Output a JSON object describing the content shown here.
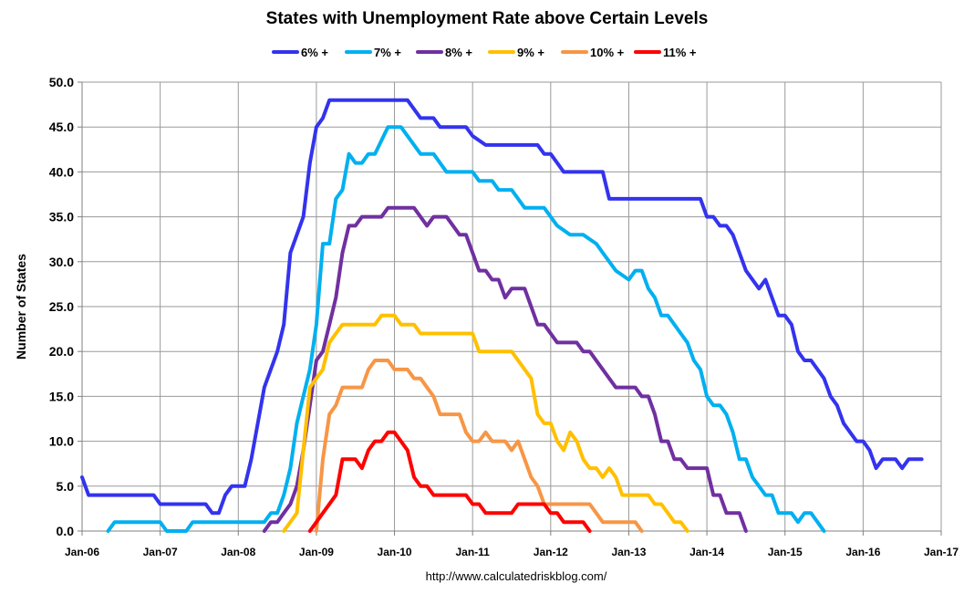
{
  "chart_data": {
    "type": "line",
    "title": "States with Unemployment Rate above Certain Levels",
    "ylabel": "Number of States",
    "xlabel": "",
    "source": "http://www.calculatedriskblog.com/",
    "ylim": [
      0,
      50
    ],
    "xlim": [
      "2006-01",
      "2017-01"
    ],
    "grid": true,
    "legend_position": "top-center",
    "y_ticks": [
      "0.0",
      "5.0",
      "10.0",
      "15.0",
      "20.0",
      "25.0",
      "30.0",
      "35.0",
      "40.0",
      "45.0",
      "50.0"
    ],
    "x_ticks": [
      "Jan-06",
      "Jan-07",
      "Jan-08",
      "Jan-09",
      "Jan-10",
      "Jan-11",
      "Jan-12",
      "Jan-13",
      "Jan-14",
      "Jan-15",
      "Jan-16",
      "Jan-17"
    ],
    "series": [
      {
        "name": "6% +",
        "color": "#3333ee",
        "points": [
          [
            "2006-01",
            6
          ],
          [
            "2006-02",
            4
          ],
          [
            "2006-12",
            4
          ],
          [
            "2007-01",
            3
          ],
          [
            "2007-08",
            3
          ],
          [
            "2007-09",
            2
          ],
          [
            "2007-10",
            2
          ],
          [
            "2007-11",
            4
          ],
          [
            "2007-12",
            5
          ],
          [
            "2008-02",
            5
          ],
          [
            "2008-03",
            8
          ],
          [
            "2008-05",
            16
          ],
          [
            "2008-07",
            20
          ],
          [
            "2008-08",
            23
          ],
          [
            "2008-09",
            31
          ],
          [
            "2008-11",
            35
          ],
          [
            "2008-12",
            41
          ],
          [
            "2009-01",
            45
          ],
          [
            "2009-02",
            46
          ],
          [
            "2009-03",
            48
          ],
          [
            "2010-03",
            48
          ],
          [
            "2010-05",
            46
          ],
          [
            "2010-07",
            46
          ],
          [
            "2010-08",
            45
          ],
          [
            "2010-12",
            45
          ],
          [
            "2011-01",
            44
          ],
          [
            "2011-03",
            43
          ],
          [
            "2011-11",
            43
          ],
          [
            "2011-12",
            42
          ],
          [
            "2012-01",
            42
          ],
          [
            "2012-03",
            40
          ],
          [
            "2012-09",
            40
          ],
          [
            "2012-10",
            37
          ],
          [
            "2013-12",
            37
          ],
          [
            "2014-01",
            35
          ],
          [
            "2014-02",
            35
          ],
          [
            "2014-03",
            34
          ],
          [
            "2014-04",
            34
          ],
          [
            "2014-05",
            33
          ],
          [
            "2014-07",
            29
          ],
          [
            "2014-09",
            27
          ],
          [
            "2014-10",
            28
          ],
          [
            "2014-12",
            24
          ],
          [
            "2015-01",
            24
          ],
          [
            "2015-02",
            23
          ],
          [
            "2015-03",
            20
          ],
          [
            "2015-04",
            19
          ],
          [
            "2015-05",
            19
          ],
          [
            "2015-07",
            17
          ],
          [
            "2015-08",
            15
          ],
          [
            "2015-09",
            14
          ],
          [
            "2015-10",
            12
          ],
          [
            "2015-12",
            10
          ],
          [
            "2016-01",
            10
          ],
          [
            "2016-02",
            9
          ],
          [
            "2016-03",
            7
          ],
          [
            "2016-04",
            8
          ],
          [
            "2016-06",
            8
          ],
          [
            "2016-07",
            7
          ],
          [
            "2016-08",
            8
          ],
          [
            "2016-10",
            8
          ]
        ]
      },
      {
        "name": "7% +",
        "color": "#00b0f0",
        "points": [
          [
            "2006-05",
            0
          ],
          [
            "2006-06",
            1
          ],
          [
            "2007-01",
            1
          ],
          [
            "2007-02",
            0
          ],
          [
            "2007-05",
            0
          ],
          [
            "2007-06",
            1
          ],
          [
            "2008-05",
            1
          ],
          [
            "2008-06",
            2
          ],
          [
            "2008-07",
            2
          ],
          [
            "2008-08",
            4
          ],
          [
            "2008-09",
            7
          ],
          [
            "2008-10",
            12
          ],
          [
            "2008-11",
            15
          ],
          [
            "2008-12",
            18
          ],
          [
            "2009-01",
            23
          ],
          [
            "2009-02",
            32
          ],
          [
            "2009-03",
            32
          ],
          [
            "2009-04",
            37
          ],
          [
            "2009-05",
            38
          ],
          [
            "2009-06",
            42
          ],
          [
            "2009-07",
            41
          ],
          [
            "2009-08",
            41
          ],
          [
            "2009-09",
            42
          ],
          [
            "2009-10",
            42
          ],
          [
            "2009-12",
            45
          ],
          [
            "2010-02",
            45
          ],
          [
            "2010-05",
            42
          ],
          [
            "2010-07",
            42
          ],
          [
            "2010-09",
            40
          ],
          [
            "2011-01",
            40
          ],
          [
            "2011-02",
            39
          ],
          [
            "2011-04",
            39
          ],
          [
            "2011-05",
            38
          ],
          [
            "2011-07",
            38
          ],
          [
            "2011-09",
            36
          ],
          [
            "2011-12",
            36
          ],
          [
            "2012-01",
            35
          ],
          [
            "2012-02",
            34
          ],
          [
            "2012-04",
            33
          ],
          [
            "2012-06",
            33
          ],
          [
            "2012-08",
            32
          ],
          [
            "2012-09",
            31
          ],
          [
            "2012-11",
            29
          ],
          [
            "2013-01",
            28
          ],
          [
            "2013-02",
            29
          ],
          [
            "2013-03",
            29
          ],
          [
            "2013-04",
            27
          ],
          [
            "2013-05",
            26
          ],
          [
            "2013-06",
            24
          ],
          [
            "2013-07",
            24
          ],
          [
            "2013-09",
            22
          ],
          [
            "2013-10",
            21
          ],
          [
            "2013-11",
            19
          ],
          [
            "2013-12",
            18
          ],
          [
            "2014-01",
            15
          ],
          [
            "2014-02",
            14
          ],
          [
            "2014-03",
            14
          ],
          [
            "2014-04",
            13
          ],
          [
            "2014-05",
            11
          ],
          [
            "2014-06",
            8
          ],
          [
            "2014-07",
            8
          ],
          [
            "2014-08",
            6
          ],
          [
            "2014-10",
            4
          ],
          [
            "2014-11",
            4
          ],
          [
            "2014-12",
            2
          ],
          [
            "2015-02",
            2
          ],
          [
            "2015-03",
            1
          ],
          [
            "2015-04",
            2
          ],
          [
            "2015-05",
            2
          ],
          [
            "2015-06",
            1
          ],
          [
            "2015-07",
            0
          ]
        ]
      },
      {
        "name": "8% +",
        "color": "#7030a0",
        "points": [
          [
            "2008-05",
            0
          ],
          [
            "2008-06",
            1
          ],
          [
            "2008-07",
            1
          ],
          [
            "2008-08",
            2
          ],
          [
            "2008-09",
            3
          ],
          [
            "2008-10",
            5
          ],
          [
            "2008-11",
            9
          ],
          [
            "2008-12",
            14
          ],
          [
            "2009-01",
            19
          ],
          [
            "2009-02",
            20
          ],
          [
            "2009-03",
            23
          ],
          [
            "2009-04",
            26
          ],
          [
            "2009-05",
            31
          ],
          [
            "2009-06",
            34
          ],
          [
            "2009-07",
            34
          ],
          [
            "2009-08",
            35
          ],
          [
            "2009-11",
            35
          ],
          [
            "2009-12",
            36
          ],
          [
            "2010-04",
            36
          ],
          [
            "2010-06",
            34
          ],
          [
            "2010-07",
            35
          ],
          [
            "2010-09",
            35
          ],
          [
            "2010-11",
            33
          ],
          [
            "2010-12",
            33
          ],
          [
            "2011-02",
            29
          ],
          [
            "2011-03",
            29
          ],
          [
            "2011-04",
            28
          ],
          [
            "2011-05",
            28
          ],
          [
            "2011-06",
            26
          ],
          [
            "2011-07",
            27
          ],
          [
            "2011-09",
            27
          ],
          [
            "2011-11",
            23
          ],
          [
            "2011-12",
            23
          ],
          [
            "2012-02",
            21
          ],
          [
            "2012-05",
            21
          ],
          [
            "2012-06",
            20
          ],
          [
            "2012-07",
            20
          ],
          [
            "2012-10",
            17
          ],
          [
            "2012-11",
            16
          ],
          [
            "2013-02",
            16
          ],
          [
            "2013-03",
            15
          ],
          [
            "2013-04",
            15
          ],
          [
            "2013-05",
            13
          ],
          [
            "2013-06",
            10
          ],
          [
            "2013-07",
            10
          ],
          [
            "2013-08",
            8
          ],
          [
            "2013-09",
            8
          ],
          [
            "2013-10",
            7
          ],
          [
            "2014-01",
            7
          ],
          [
            "2014-02",
            4
          ],
          [
            "2014-03",
            4
          ],
          [
            "2014-04",
            2
          ],
          [
            "2014-06",
            2
          ],
          [
            "2014-07",
            0
          ]
        ]
      },
      {
        "name": "9% +",
        "color": "#ffc000",
        "points": [
          [
            "2008-08",
            0
          ],
          [
            "2008-10",
            2
          ],
          [
            "2008-11",
            9
          ],
          [
            "2008-12",
            16
          ],
          [
            "2009-01",
            17
          ],
          [
            "2009-02",
            18
          ],
          [
            "2009-03",
            21
          ],
          [
            "2009-04",
            22
          ],
          [
            "2009-05",
            23
          ],
          [
            "2009-10",
            23
          ],
          [
            "2009-11",
            24
          ],
          [
            "2010-01",
            24
          ],
          [
            "2010-02",
            23
          ],
          [
            "2010-04",
            23
          ],
          [
            "2010-05",
            22
          ],
          [
            "2011-01",
            22
          ],
          [
            "2011-02",
            20
          ],
          [
            "2011-07",
            20
          ],
          [
            "2011-09",
            18
          ],
          [
            "2011-10",
            17
          ],
          [
            "2011-11",
            13
          ],
          [
            "2011-12",
            12
          ],
          [
            "2012-01",
            12
          ],
          [
            "2012-02",
            10
          ],
          [
            "2012-03",
            9
          ],
          [
            "2012-04",
            11
          ],
          [
            "2012-05",
            10
          ],
          [
            "2012-06",
            8
          ],
          [
            "2012-07",
            7
          ],
          [
            "2012-08",
            7
          ],
          [
            "2012-09",
            6
          ],
          [
            "2012-10",
            7
          ],
          [
            "2012-11",
            6
          ],
          [
            "2012-12",
            4
          ],
          [
            "2013-04",
            4
          ],
          [
            "2013-05",
            3
          ],
          [
            "2013-06",
            3
          ],
          [
            "2013-07",
            2
          ],
          [
            "2013-08",
            1
          ],
          [
            "2013-09",
            1
          ],
          [
            "2013-10",
            0
          ]
        ]
      },
      {
        "name": "10% +",
        "color": "#f79646",
        "points": [
          [
            "2009-01",
            0
          ],
          [
            "2009-02",
            8
          ],
          [
            "2009-03",
            13
          ],
          [
            "2009-04",
            14
          ],
          [
            "2009-05",
            16
          ],
          [
            "2009-08",
            16
          ],
          [
            "2009-09",
            18
          ],
          [
            "2009-10",
            19
          ],
          [
            "2009-12",
            19
          ],
          [
            "2010-01",
            18
          ],
          [
            "2010-03",
            18
          ],
          [
            "2010-04",
            17
          ],
          [
            "2010-05",
            17
          ],
          [
            "2010-06",
            16
          ],
          [
            "2010-07",
            15
          ],
          [
            "2010-08",
            13
          ],
          [
            "2010-11",
            13
          ],
          [
            "2010-12",
            11
          ],
          [
            "2011-01",
            10
          ],
          [
            "2011-02",
            10
          ],
          [
            "2011-03",
            11
          ],
          [
            "2011-04",
            10
          ],
          [
            "2011-05",
            10
          ],
          [
            "2011-06",
            10
          ],
          [
            "2011-07",
            9
          ],
          [
            "2011-08",
            10
          ],
          [
            "2011-09",
            8
          ],
          [
            "2011-10",
            6
          ],
          [
            "2011-11",
            5
          ],
          [
            "2011-12",
            3
          ],
          [
            "2012-07",
            3
          ],
          [
            "2012-08",
            2
          ],
          [
            "2012-09",
            1
          ],
          [
            "2013-02",
            1
          ],
          [
            "2013-03",
            0
          ]
        ]
      },
      {
        "name": "11% +",
        "color": "#ff0000",
        "points": [
          [
            "2008-12",
            0
          ],
          [
            "2009-01",
            1
          ],
          [
            "2009-02",
            2
          ],
          [
            "2009-04",
            4
          ],
          [
            "2009-05",
            8
          ],
          [
            "2009-07",
            8
          ],
          [
            "2009-08",
            7
          ],
          [
            "2009-09",
            9
          ],
          [
            "2009-10",
            10
          ],
          [
            "2009-11",
            10
          ],
          [
            "2009-12",
            11
          ],
          [
            "2010-01",
            11
          ],
          [
            "2010-03",
            9
          ],
          [
            "2010-04",
            6
          ],
          [
            "2010-05",
            5
          ],
          [
            "2010-06",
            5
          ],
          [
            "2010-07",
            4
          ],
          [
            "2010-12",
            4
          ],
          [
            "2011-01",
            3
          ],
          [
            "2011-02",
            3
          ],
          [
            "2011-03",
            2
          ],
          [
            "2011-07",
            2
          ],
          [
            "2011-08",
            3
          ],
          [
            "2011-12",
            3
          ],
          [
            "2012-01",
            2
          ],
          [
            "2012-02",
            2
          ],
          [
            "2012-03",
            1
          ],
          [
            "2012-06",
            1
          ],
          [
            "2012-07",
            0
          ]
        ]
      }
    ]
  }
}
